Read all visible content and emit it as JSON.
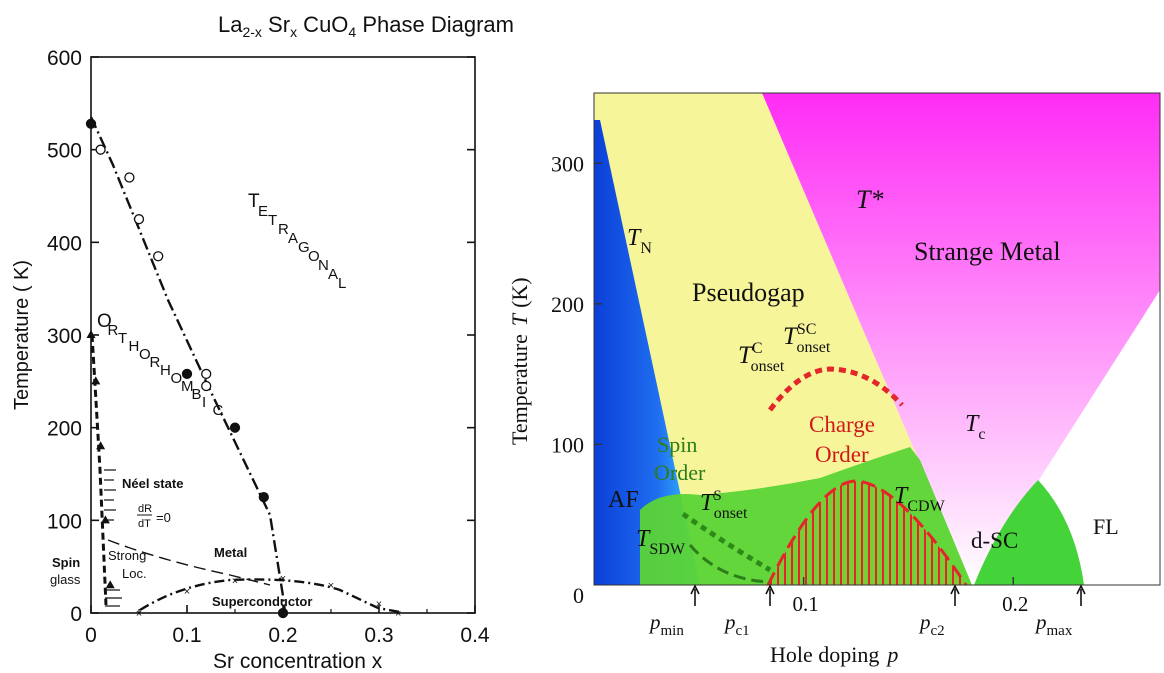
{
  "left": {
    "title": {
      "base": "La",
      "sub1": "2-x",
      "mid": " Sr",
      "sub2": "x",
      "tail": " CuO",
      "sub3": "4",
      "rest": " Phase Diagram"
    },
    "xlabel": "Sr concentration  x",
    "ylabel": "Temperature ( K)",
    "yticks": [
      "0",
      "100",
      "200",
      "300",
      "400",
      "500",
      "600"
    ],
    "xticks": [
      "0",
      "0.1",
      "0.2",
      "0.3",
      "0.4"
    ],
    "labels": {
      "tetragonal": [
        "T",
        "E",
        "T",
        "R",
        "A",
        "G",
        "O",
        "N",
        "A",
        "L"
      ],
      "orthorhombic": [
        "O",
        "R",
        "T",
        "H",
        "O",
        "R",
        "H",
        "O",
        "M",
        "B",
        "I",
        "C"
      ],
      "neel": "Néel state",
      "drdt_num": "dR",
      "drdt_den": "dT",
      "drdt_eq": "=0",
      "metal": "Metal",
      "strong": "Strong",
      "loc": "Loc.",
      "spin": "Spin",
      "glass": "glass",
      "superconductor": "Superconductor"
    }
  },
  "right": {
    "xlabel": "Hole doping",
    "xlabel_var": "p",
    "ylabel": "Temperature",
    "ylabel_var": "T",
    "ylabel_unit": "(K)",
    "yticks": [
      "0",
      "100",
      "200",
      "300"
    ],
    "xticks": [
      "0.1",
      "0.2"
    ],
    "markers": [
      {
        "p": "p",
        "sub": "min"
      },
      {
        "p": "p",
        "sub": "c1"
      },
      {
        "p": "p",
        "sub": "c2"
      },
      {
        "p": "p",
        "sub": "max"
      }
    ],
    "regions": {
      "tn": "T",
      "tn_sub": "N",
      "tstar": "T*",
      "strange": "Strange Metal",
      "pseudogap": "Pseudogap",
      "tc_onset": "T",
      "tc_onset_sup": "C",
      "tc_onset_sub": "onset",
      "tsc_onset": "T",
      "tsc_onset_sup": "SC",
      "tsc_onset_sub": "onset",
      "tc": "T",
      "tc_sub": "c",
      "charge": "Charge",
      "order": "Order",
      "spin": "Spin",
      "spin_order": "Order",
      "af": "AF",
      "ts_onset": "T",
      "ts_onset_sup": "S",
      "ts_onset_sub": "onset",
      "tcdw": "T",
      "tcdw_sub": "CDW",
      "tsdw": "T",
      "tsdw_sub": "SDW",
      "dsc": "d-SC",
      "fl": "FL"
    }
  },
  "colors": {
    "af_blue": "#1a5fe0",
    "pseudogap_yellow": "#f7f59a",
    "strange_magenta": "#ff2cf5",
    "sc_green": "#4fd63a",
    "charge_red": "#e4252a",
    "spin_green": "#2d7d1a",
    "fan_pink": "#fbd0f7"
  },
  "chart_data": [
    {
      "type": "scatter",
      "title": "La2-x Srx CuO4 Phase Diagram",
      "xlabel": "Sr concentration  x",
      "ylabel": "Temperature ( K)",
      "xlim": [
        0,
        0.4
      ],
      "ylim": [
        0,
        600
      ],
      "series": [
        {
          "name": "TETRAGONAL",
          "x": [
            0,
            0.01,
            0.04,
            0.05,
            0.07,
            0.1,
            0.12,
            0.12,
            0.15,
            0.18,
            0.2
          ],
          "y": [
            528,
            500,
            470,
            425,
            385,
            258,
            258,
            245,
            200,
            125,
            0
          ]
        },
        {
          "name": "Néel state",
          "x": [
            0,
            0.005,
            0.01,
            0.015,
            0.02
          ],
          "y": [
            300,
            250,
            180,
            100,
            30
          ]
        },
        {
          "name": "Metal",
          "x": [
            0.02,
            0.05,
            0.1,
            0.15,
            0.2
          ],
          "y": [
            90,
            80,
            62,
            45,
            30
          ]
        },
        {
          "name": "Superconductor",
          "x": [
            0.05,
            0.1,
            0.15,
            0.2,
            0.25,
            0.3,
            0.32
          ],
          "y": [
            0,
            24,
            35,
            38,
            30,
            10,
            0
          ]
        }
      ]
    },
    {
      "type": "area",
      "xlabel": "Hole doping p",
      "ylabel": "Temperature T (K)",
      "xlim": [
        0,
        0.27
      ],
      "ylim": [
        0,
        350
      ],
      "series": [
        {
          "name": "T*",
          "x": [
            0.01,
            0.19
          ],
          "y": [
            330,
            0
          ]
        },
        {
          "name": "Tc",
          "x": [
            0.19,
            0.27
          ],
          "y": [
            0,
            145
          ]
        },
        {
          "name": "TCDW",
          "x": [
            0.08,
            0.11,
            0.13,
            0.15,
            0.18
          ],
          "y": [
            0,
            55,
            75,
            55,
            0
          ]
        },
        {
          "name": "d-SC",
          "x": [
            0.19,
            0.23,
            0.26
          ],
          "y": [
            0,
            75,
            0
          ]
        }
      ]
    }
  ]
}
